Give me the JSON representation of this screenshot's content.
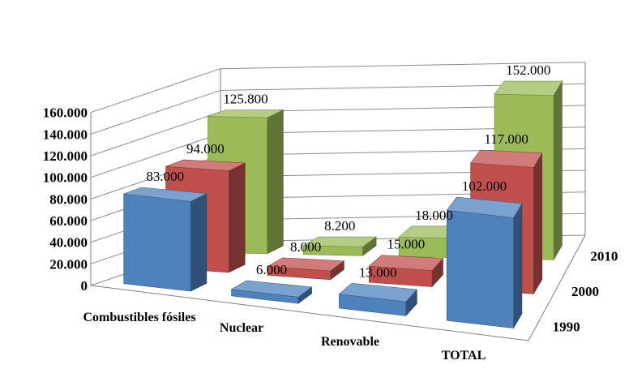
{
  "chart_data": {
    "type": "bar",
    "variant": "3d-column",
    "title": "",
    "xlabel": "",
    "ylabel": "",
    "categories": [
      "Combustibles fósiles",
      "Nuclear",
      "Renovable",
      "TOTAL"
    ],
    "series": [
      {
        "name": "1990",
        "values": [
          83000,
          6000,
          13000,
          102000
        ],
        "value_labels": [
          "83.000",
          "6.000",
          "13.000",
          "102.000"
        ],
        "color": "#4f81bd"
      },
      {
        "name": "2000",
        "values": [
          94000,
          8000,
          15000,
          117000
        ],
        "value_labels": [
          "94.000",
          "8.000",
          "15.000",
          "117.000"
        ],
        "color": "#c0504d"
      },
      {
        "name": "2010",
        "values": [
          125800,
          8200,
          18000,
          152000
        ],
        "value_labels": [
          "125.800",
          "8.200",
          "18.000",
          "152.000"
        ],
        "color": "#9bbb59"
      }
    ],
    "y_ticks": [
      "0",
      "20.000",
      "40.000",
      "60.000",
      "80.000",
      "100.000",
      "120.000",
      "140.000",
      "160.000"
    ],
    "ylim": [
      0,
      160000
    ],
    "grid": true,
    "legend": "none"
  }
}
